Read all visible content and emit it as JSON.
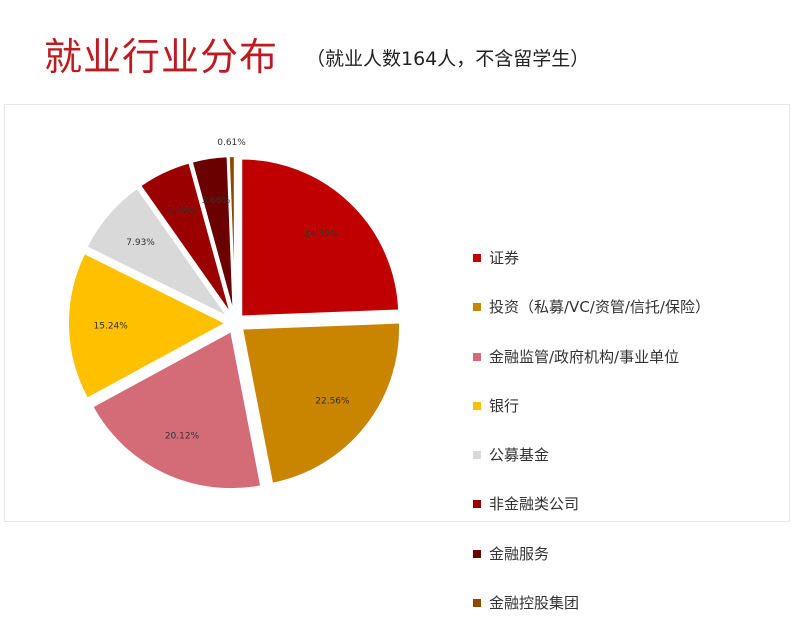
{
  "header": {
    "title": "就业行业分布",
    "subtitle": "（就业人数164人，不含留学生）"
  },
  "chart_data": {
    "type": "pie",
    "title": "",
    "legend_position": "right",
    "slices": [
      {
        "name": "证券",
        "value": 24.39,
        "label": "24.39%",
        "color": "#c00000"
      },
      {
        "name": "投资（私募/VC/资管/信托/保险）",
        "value": 22.56,
        "label": "22.56%",
        "color": "#c98400"
      },
      {
        "name": "金融监管/政府机构/事业单位",
        "value": 20.12,
        "label": "20.12%",
        "color": "#d46c78"
      },
      {
        "name": "银行",
        "value": 15.24,
        "label": "15.24%",
        "color": "#ffc000"
      },
      {
        "name": "公募基金",
        "value": 7.93,
        "label": "7.93%",
        "color": "#d9d9d9"
      },
      {
        "name": "非金融类公司",
        "value": 5.49,
        "label": "5.49%",
        "color": "#9b0000"
      },
      {
        "name": "金融服务",
        "value": 3.66,
        "label": "3.66%",
        "color": "#6b0000"
      },
      {
        "name": "金融控股集团",
        "value": 0.61,
        "label": "0.61%",
        "color": "#8c4a00"
      }
    ]
  }
}
